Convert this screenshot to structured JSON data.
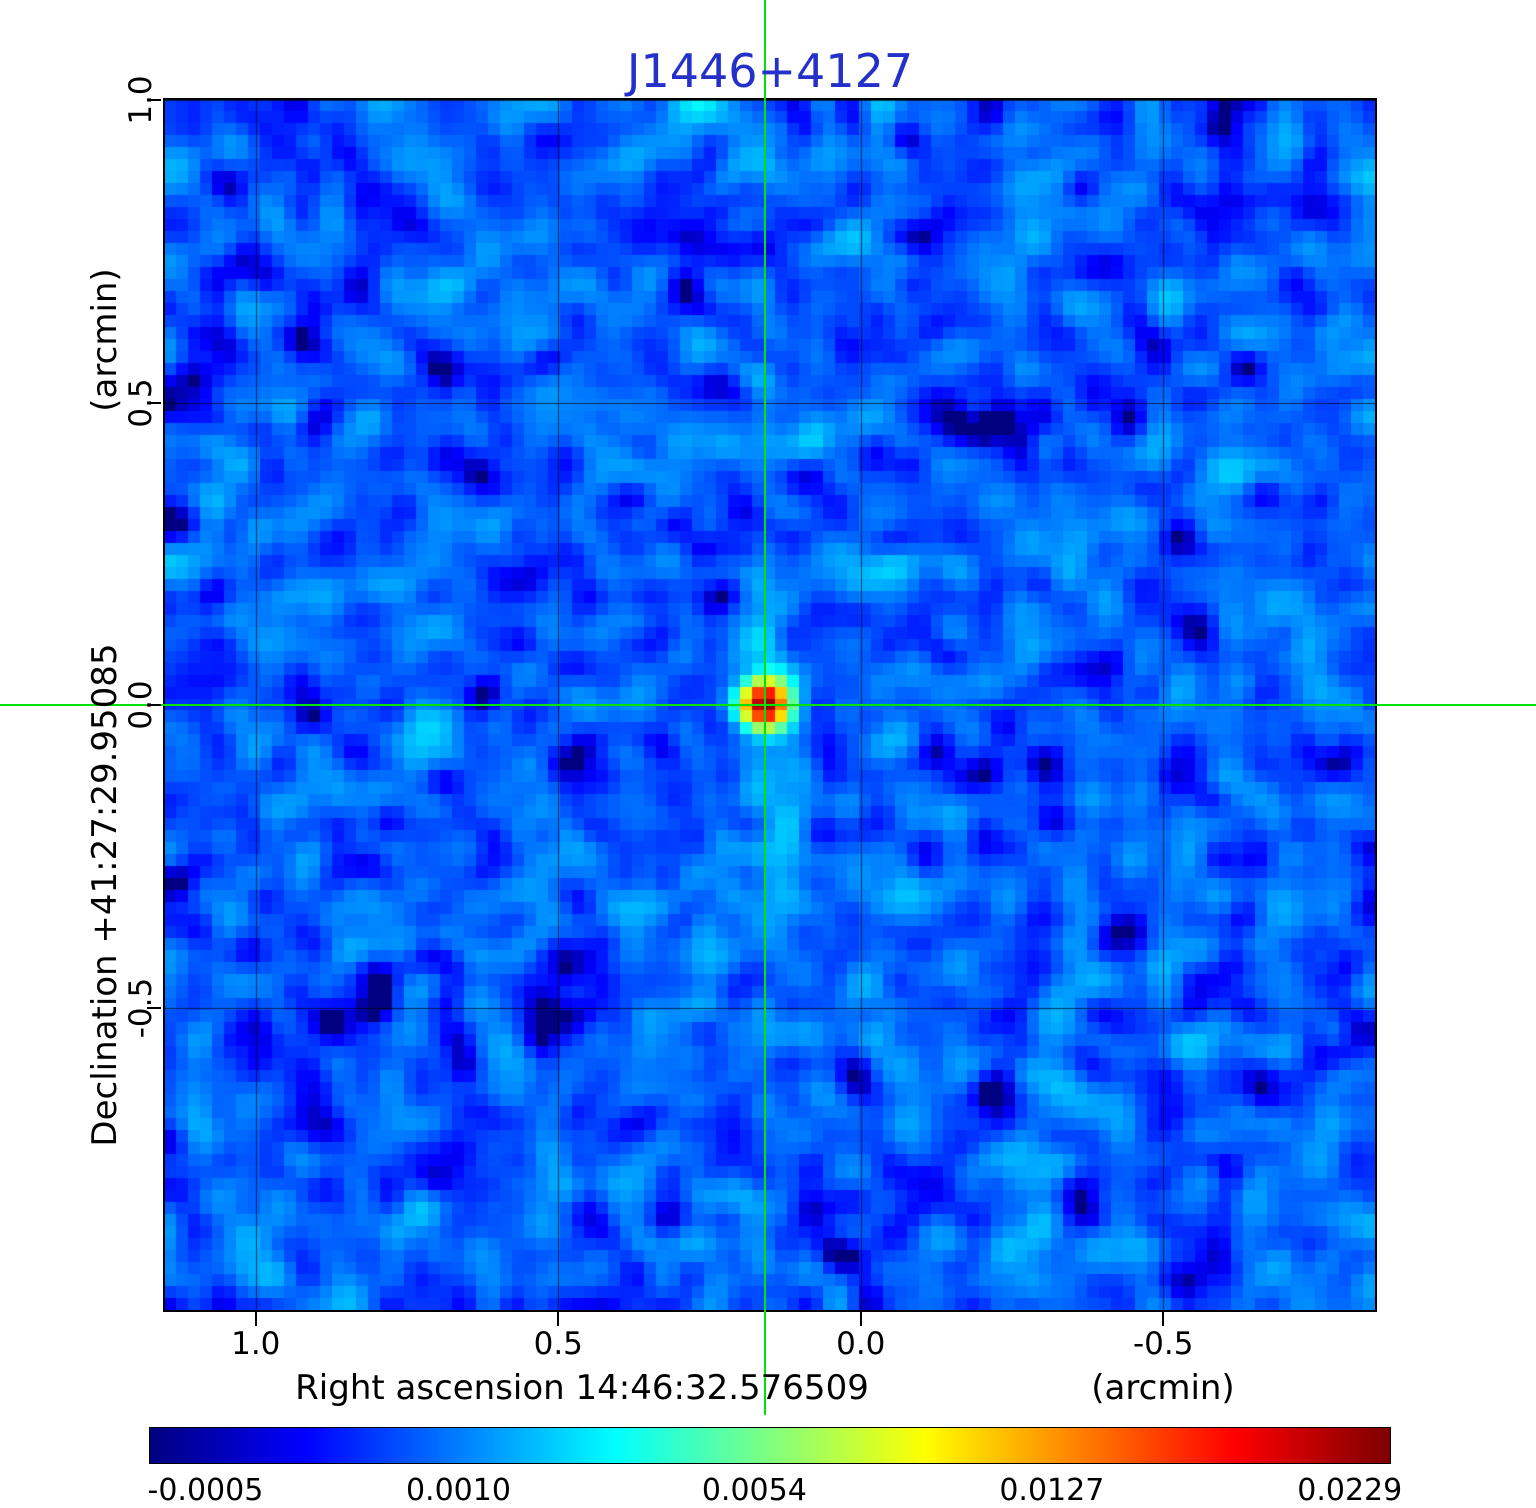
{
  "title": {
    "text": "J1446+4127",
    "color": "#2431c8"
  },
  "axes": {
    "y_label": "Declination  +41:27:29.95085",
    "y_unit": "(arcmin)",
    "x_label": "Right ascension  14:46:32.576509",
    "x_unit": "(arcmin)",
    "x_tick_labels": [
      "1.0",
      "0.5",
      "0.0",
      "-0.5"
    ],
    "y_tick_labels": [
      "1.0",
      "0.5",
      "0.0",
      "-0.5"
    ]
  },
  "colorbar": {
    "tick_labels": [
      "-0.0005",
      "0.0010",
      "0.0054",
      "0.0127",
      "0.0229"
    ],
    "tick_values": [
      -0.0005,
      0.001,
      0.0054,
      0.0127,
      0.0229
    ]
  },
  "chart_data": {
    "type": "heatmap",
    "title": "J1446+4127",
    "xlabel": "Right ascension 14:46:32.576509 (arcmin)",
    "ylabel": "Declination +41:27:29.95085 (arcmin)",
    "x_range": [
      1.15,
      -0.85
    ],
    "y_range": [
      -1.0,
      1.0
    ],
    "x_ticks": [
      1.0,
      0.5,
      0.0,
      -0.5
    ],
    "y_ticks": [
      1.0,
      0.5,
      0.0,
      -0.5
    ],
    "grid": true,
    "colormap": "jet",
    "color_scale": "sqrt",
    "value_min": -0.00055,
    "value_max": 0.0245,
    "colorbar_ticks": [
      -0.0005,
      0.001,
      0.0054,
      0.0127,
      0.0229
    ],
    "background_noise": {
      "mean": 0.0006,
      "sigma": 0.00045
    },
    "source": {
      "x": 0.158,
      "y": 0.0,
      "peak": 0.0235,
      "sigma_arcmin": 0.025
    },
    "crosshair": {
      "x": 0.158,
      "y": 0.0,
      "color": "#00e208"
    },
    "legend": "none"
  }
}
